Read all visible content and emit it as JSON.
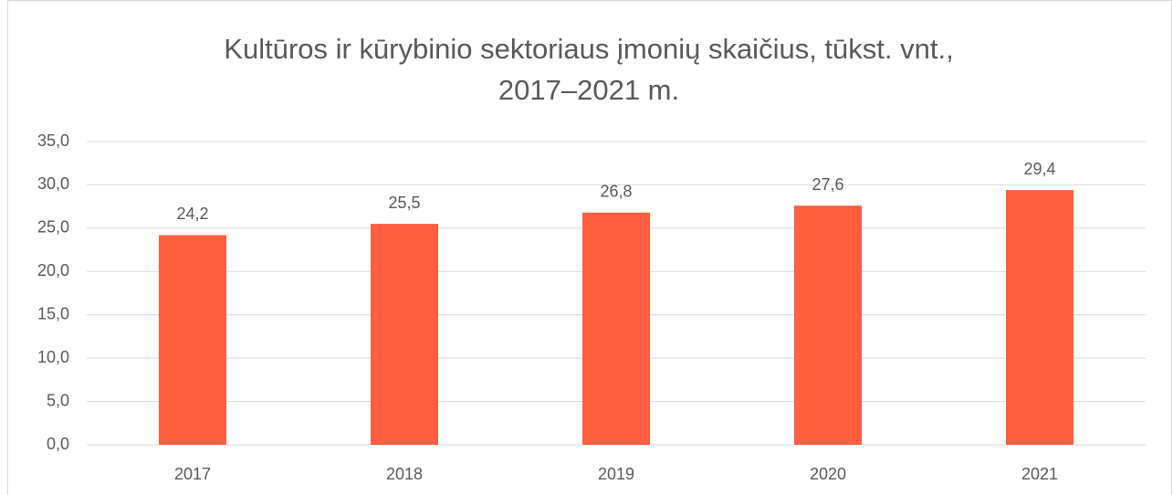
{
  "chart_data": {
    "type": "bar",
    "title": [
      "Kultūros ir kūrybinio sektoriaus įmonių skaičius, tūkst. vnt.,",
      "2017–2021 m."
    ],
    "categories": [
      "2017",
      "2018",
      "2019",
      "2020",
      "2021"
    ],
    "values": [
      24.2,
      25.5,
      26.8,
      27.6,
      29.4
    ],
    "value_labels": [
      "24,2",
      "25,5",
      "26,8",
      "27,6",
      "29,4"
    ],
    "color": "#ff5f3f",
    "ylim": [
      0,
      35
    ],
    "yticks": [
      {
        "value": 0,
        "label": "0,0"
      },
      {
        "value": 5,
        "label": "5,0"
      },
      {
        "value": 10,
        "label": "10,0"
      },
      {
        "value": 15,
        "label": "15,0"
      },
      {
        "value": 20,
        "label": "20,0"
      },
      {
        "value": 25,
        "label": "25,0"
      },
      {
        "value": 30,
        "label": "30,0"
      },
      {
        "value": 35,
        "label": "35,0"
      }
    ],
    "grid": true
  }
}
